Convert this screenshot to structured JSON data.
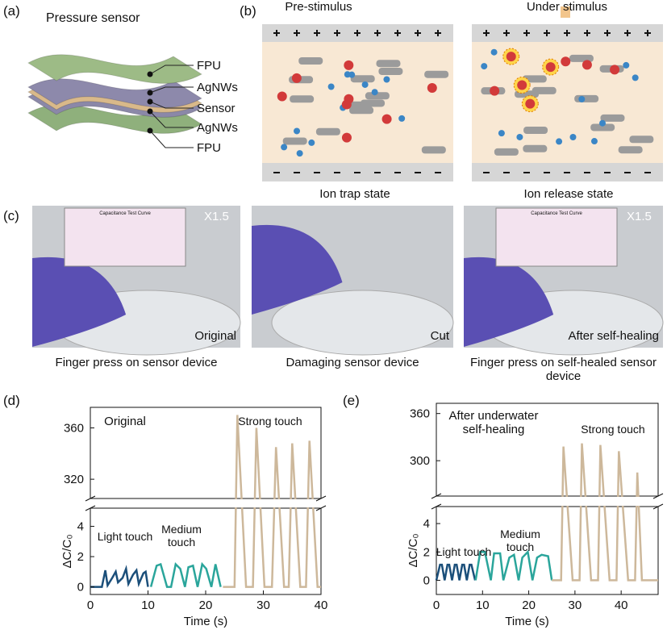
{
  "panel_labels": [
    "(a)",
    "(b)",
    "(c)",
    "(d)",
    "(e)"
  ],
  "a": {
    "title": "Pressure sensor",
    "layers": [
      "FPU",
      "AgNWs",
      "Sensor",
      "AgNWs",
      "FPU"
    ]
  },
  "b": {
    "left_title": "Pre-stimulus",
    "right_title": "Under stimulus",
    "left_caption": "Ion trap state",
    "right_caption": "Ion release state"
  },
  "c": {
    "photos": [
      {
        "zoom": "X1.5",
        "inset_title": "Capacitance Test Curve",
        "tag": "Original",
        "caption": "Finger press on sensor device"
      },
      {
        "tag": "Cut",
        "caption": "Damaging sensor device"
      },
      {
        "zoom": "X1.5",
        "inset_title": "Capacitance Test Curve",
        "tag": "After self-healing",
        "caption": "Finger press on self-healed sensor device"
      }
    ]
  },
  "chart_data": [
    {
      "type": "line",
      "annotations": [
        "Original"
      ],
      "xlabel": "Time (s)",
      "ylabel": "ΔC/C₀",
      "xlim": [
        0,
        40
      ],
      "xticks": [
        0,
        10,
        20,
        30,
        40
      ],
      "ylim": [
        -0.5,
        376
      ],
      "ybreak": [
        5.2,
        305
      ],
      "yticks": [
        0,
        2,
        4,
        320,
        360
      ],
      "series": [
        {
          "name": "Light touch",
          "color": "#1b4f7a",
          "x": [
            0,
            2,
            2.6,
            3,
            3.8,
            4.4,
            4.8,
            5.6,
            6.2,
            6.6,
            7.4,
            8,
            8.4,
            9.2,
            9.6,
            10
          ],
          "values": [
            0,
            0,
            1.1,
            0.1,
            0.6,
            1,
            0.3,
            0.6,
            1.2,
            0.2,
            0.8,
            1.1,
            0.2,
            0.9,
            1,
            0
          ]
        },
        {
          "name": "Medium touch",
          "color": "#2aa59b",
          "x": [
            10.5,
            11.5,
            12.2,
            13.3,
            14,
            14.8,
            15.6,
            16.4,
            17,
            17.8,
            18.6,
            19.4,
            20.1,
            21,
            21.7,
            22.6
          ],
          "values": [
            0,
            1.4,
            1.5,
            0,
            0,
            1.5,
            1.2,
            0,
            1.3,
            1.4,
            0,
            1.5,
            1.2,
            0,
            1.5,
            0
          ]
        },
        {
          "name": "Strong touch",
          "color": "#cdb89b",
          "x": [
            23,
            25,
            25.5,
            27,
            28.2,
            28.8,
            30.2,
            31.5,
            32.2,
            33.6,
            34.4,
            35,
            36.4,
            37.4,
            38,
            39.4,
            40
          ],
          "values": [
            0,
            0,
            370,
            0,
            0,
            360,
            0,
            0,
            345,
            0,
            0,
            348,
            0,
            0,
            350,
            0,
            0
          ]
        }
      ]
    },
    {
      "type": "line",
      "annotations": [
        "After underwater self-healing"
      ],
      "xlabel": "Time (s)",
      "ylabel": "ΔC/C₀",
      "xlim": [
        0,
        48
      ],
      "xticks": [
        0,
        10,
        20,
        30,
        40
      ],
      "ylim": [
        -1,
        373
      ],
      "ybreak": [
        5.2,
        255
      ],
      "yticks": [
        0,
        2,
        4,
        300,
        360
      ],
      "series": [
        {
          "name": "Light touch",
          "color": "#1b4f7a",
          "x": [
            0,
            0.8,
            1.2,
            1.8,
            2.4,
            2.8,
            3.4,
            4,
            4.4,
            5,
            5.6,
            6,
            6.6,
            7.2,
            7.6,
            8.4
          ],
          "values": [
            0,
            1.1,
            1.1,
            0,
            1.1,
            1.1,
            0,
            1.1,
            1.1,
            0,
            1.1,
            1.1,
            0,
            1.1,
            1.1,
            0
          ]
        },
        {
          "name": "Medium touch",
          "color": "#2aa59b",
          "x": [
            8.5,
            9.5,
            10.5,
            11.8,
            12.5,
            13.8,
            14.5,
            15.8,
            16.8,
            17.8,
            18.6,
            19.8,
            20.8,
            21.8,
            22.8,
            24.2,
            25
          ],
          "values": [
            0,
            2,
            2,
            0,
            1.9,
            1.9,
            0,
            1.6,
            1.8,
            0,
            1.6,
            2,
            0,
            1.6,
            1.8,
            1.7,
            0
          ]
        },
        {
          "name": "Strong touch",
          "color": "#cdb89b",
          "x": [
            25,
            27,
            27.5,
            29.5,
            31,
            31.5,
            33.5,
            35,
            35.5,
            37.5,
            39,
            39.5,
            41.5,
            43,
            43.5,
            44.5,
            45.5,
            48
          ],
          "values": [
            0,
            0,
            318,
            0,
            0,
            322,
            0,
            0,
            320,
            0,
            0,
            312,
            0,
            0,
            285,
            0,
            0,
            0
          ]
        }
      ]
    }
  ]
}
